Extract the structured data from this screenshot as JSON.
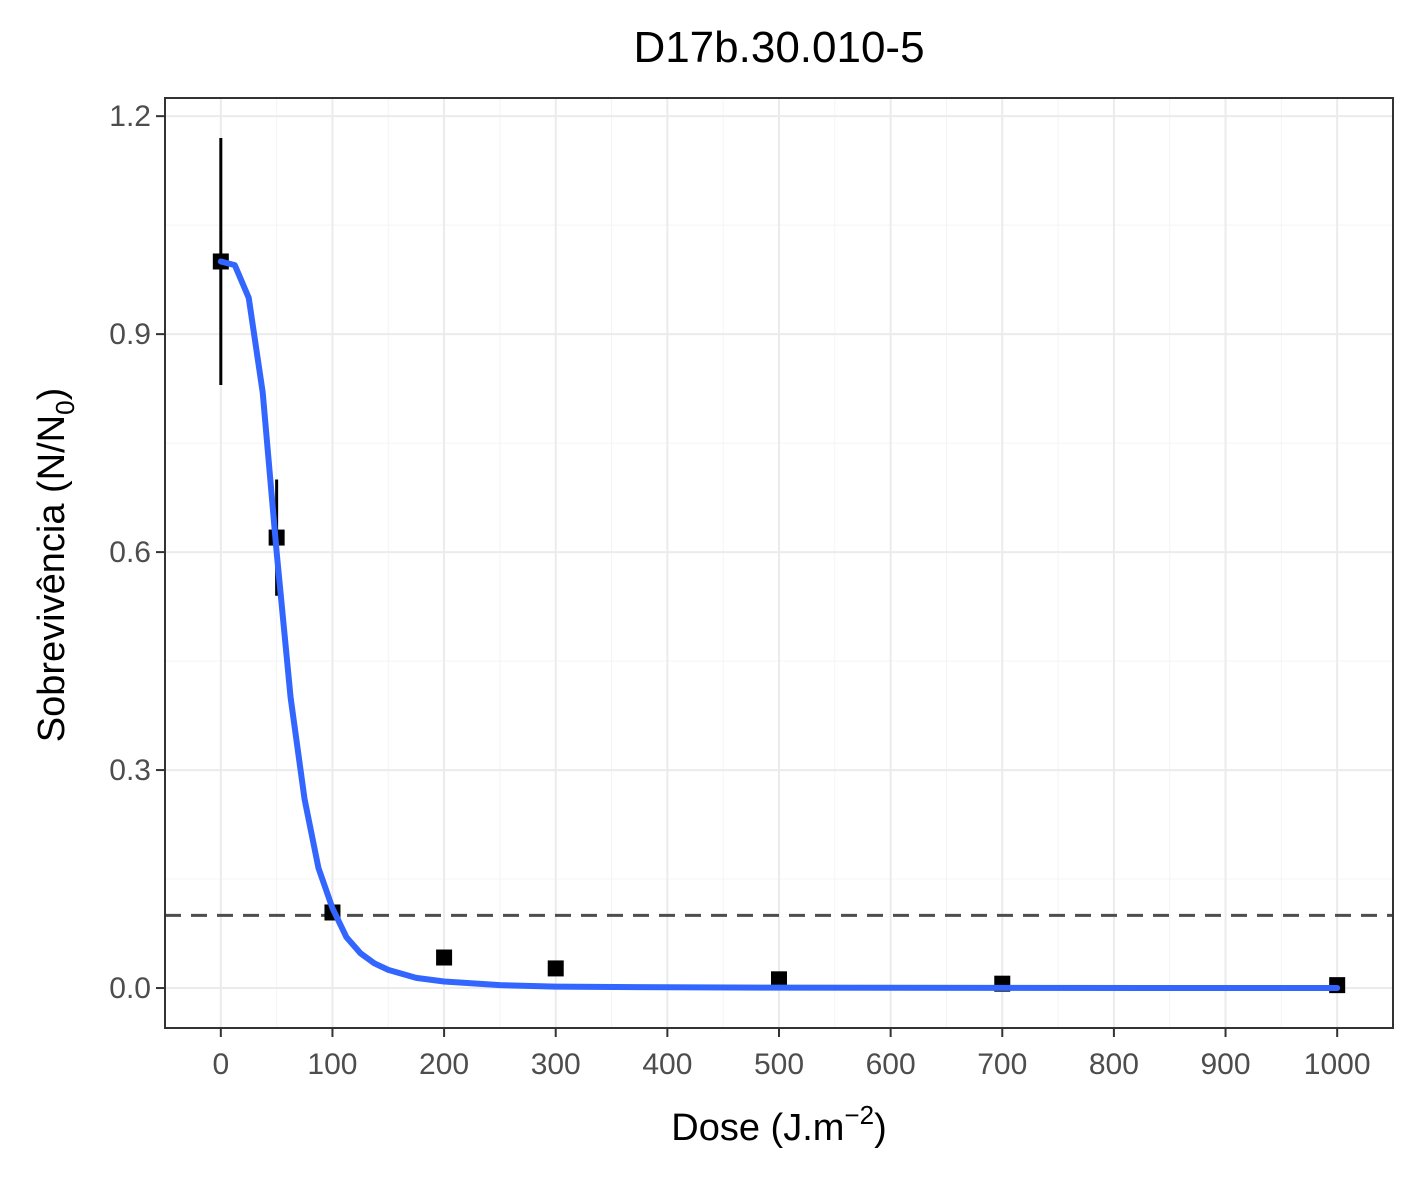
{
  "chart_data": {
    "type": "scatter",
    "title": "D17b.30.010-5",
    "xlabel": {
      "base": "Dose (J.m",
      "sup": "−2",
      "close": ")"
    },
    "ylabel": {
      "base": "Sobrevivência (N/N",
      "sub": "0",
      "close": ")"
    },
    "xlim": [
      -50,
      1050
    ],
    "ylim": [
      -0.055,
      1.225
    ],
    "x_ticks": [
      0,
      100,
      200,
      300,
      400,
      500,
      600,
      700,
      800,
      900,
      1000
    ],
    "x_tick_labels": [
      "0",
      "100",
      "200",
      "300",
      "400",
      "500",
      "600",
      "700",
      "800",
      "900",
      "1000"
    ],
    "y_ticks": [
      0.0,
      0.3,
      0.6,
      0.9,
      1.2
    ],
    "y_tick_labels": [
      "0.0",
      "0.3",
      "0.6",
      "0.9",
      "1.2"
    ],
    "grid": true,
    "points": [
      {
        "x": 0,
        "y": 1.0,
        "ymin": 0.83,
        "ymax": 1.17
      },
      {
        "x": 50,
        "y": 0.62,
        "ymin": 0.54,
        "ymax": 0.7
      },
      {
        "x": 100,
        "y": 0.104
      },
      {
        "x": 200,
        "y": 0.042
      },
      {
        "x": 300,
        "y": 0.027
      },
      {
        "x": 500,
        "y": 0.012
      },
      {
        "x": 700,
        "y": 0.006
      },
      {
        "x": 1000,
        "y": 0.004
      }
    ],
    "fit_curve": {
      "color": "#3366ff",
      "x": [
        0,
        12.5,
        25,
        37.5,
        50,
        62.5,
        75,
        87.5,
        100,
        112.5,
        125,
        137.5,
        150,
        175,
        200,
        250,
        300,
        400,
        500,
        700,
        1000
      ],
      "y": [
        1.0,
        0.995,
        0.95,
        0.82,
        0.6,
        0.4,
        0.26,
        0.165,
        0.11,
        0.07,
        0.048,
        0.034,
        0.025,
        0.014,
        0.009,
        0.004,
        0.002,
        0.001,
        0.0005,
        0.0002,
        0.0
      ]
    },
    "reference_line": {
      "y": 0.1,
      "style": "dashed",
      "color": "#4d4d4d"
    },
    "point_color": "#000000"
  }
}
